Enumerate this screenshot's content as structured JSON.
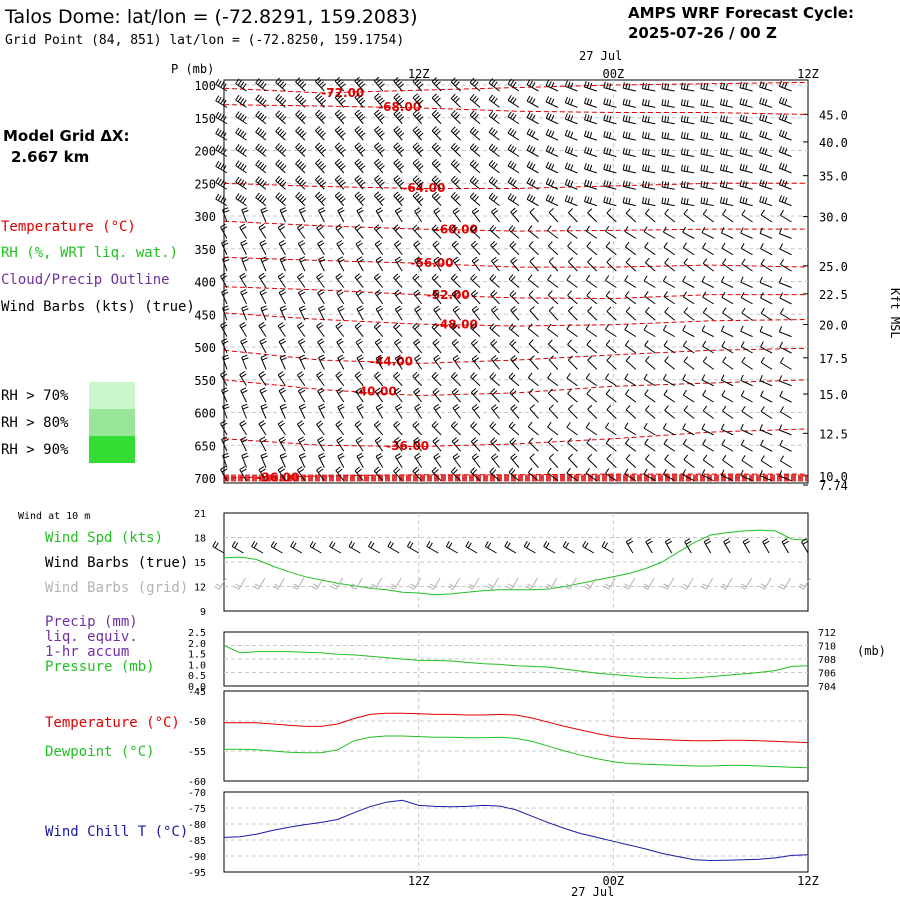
{
  "header": {
    "title": "Talos Dome:  lat/lon = (-72.8291, 159.2083)",
    "subtitle": "Grid Point (84, 851) lat/lon = (-72.8250, 159.1754)",
    "cycle_line1": "AMPS WRF Forecast Cycle:",
    "cycle_line2": "2025-07-26 / 00  Z"
  },
  "left_panel": {
    "grid_label": "Model Grid ΔX:",
    "grid_value": "2.667 km",
    "legend": [
      {
        "text": "Temperature (°C)",
        "color": "#e00000"
      },
      {
        "text": "RH (%, WRT liq. wat.)",
        "color": "#22c022"
      },
      {
        "text": "Cloud/Precip Outline",
        "color": "#7030a0"
      },
      {
        "text": "Wind Barbs (kts) (true)",
        "color": "#000000"
      }
    ],
    "rh_levels": [
      {
        "text": "RH > 70%",
        "color": "#ccf7cc"
      },
      {
        "text": "RH > 80%",
        "color": "#99e699"
      },
      {
        "text": "RH > 90%",
        "color": "#33dd33"
      }
    ]
  },
  "time_axis": {
    "top_date": "27 Jul",
    "bottom_date": "27 Jul",
    "labels": [
      "12Z",
      "00Z",
      "12Z"
    ]
  },
  "colors": {
    "temperature": "#e00000",
    "rh": "#22c022",
    "dewpoint": "#22c022",
    "pressure": "#22c022",
    "windchill": "#1a1aa8",
    "wind_speed": "#22c022",
    "grid_barbs": "#b4b4b4",
    "precip_label": "#7030a0"
  },
  "chart_data": [
    {
      "type": "line",
      "panel": "vertical cross-section",
      "ylabel": "P (mb)",
      "right_label": "Kft MSL",
      "y_ticks": [
        "100",
        "150",
        "200",
        "250",
        "300",
        "350",
        "400",
        "450",
        "500",
        "550",
        "600",
        "650",
        "700"
      ],
      "right_ticks": [
        "45.0",
        "40.0",
        "35.0",
        "30.0",
        "25.0",
        "22.5",
        "20.0",
        "17.5",
        "15.0",
        "12.5",
        "10.0",
        "7.74"
      ],
      "x_hours": [
        0,
        12,
        24,
        36
      ],
      "temperature_contours": [
        {
          "label": "-72.00",
          "points": [
            [
              0,
              105
            ],
            [
              6,
              112
            ],
            [
              12,
              108
            ],
            [
              18,
              104
            ],
            [
              24,
              100
            ],
            [
              30,
              98
            ],
            [
              36,
              96
            ]
          ]
        },
        {
          "label": "-68.00",
          "points": [
            [
              0,
              130
            ],
            [
              6,
              132
            ],
            [
              12,
              135
            ],
            [
              18,
              140
            ],
            [
              24,
              142
            ],
            [
              30,
              142
            ],
            [
              36,
              145
            ]
          ]
        },
        {
          "label": "-64.00",
          "points": [
            [
              0,
              250
            ],
            [
              6,
              255
            ],
            [
              12,
              258
            ],
            [
              18,
              258
            ],
            [
              24,
              254
            ],
            [
              30,
              250
            ],
            [
              36,
              250
            ]
          ]
        },
        {
          "label": "-60.00",
          "points": [
            [
              0,
              308
            ],
            [
              6,
              315
            ],
            [
              12,
              320
            ],
            [
              18,
              323
            ],
            [
              24,
              322
            ],
            [
              30,
              320
            ],
            [
              36,
              320
            ]
          ]
        },
        {
          "label": "-56.00",
          "points": [
            [
              0,
              363
            ],
            [
              6,
              368
            ],
            [
              12,
              372
            ],
            [
              18,
              378
            ],
            [
              24,
              378
            ],
            [
              30,
              375
            ],
            [
              36,
              378
            ]
          ]
        },
        {
          "label": "-52.00",
          "points": [
            [
              0,
              408
            ],
            [
              6,
              413
            ],
            [
              12,
              420
            ],
            [
              18,
              425
            ],
            [
              24,
              426
            ],
            [
              30,
              420
            ],
            [
              36,
              420
            ]
          ]
        },
        {
          "label": "-48.00",
          "points": [
            [
              0,
              448
            ],
            [
              6,
              458
            ],
            [
              12,
              465
            ],
            [
              18,
              468
            ],
            [
              24,
              466
            ],
            [
              30,
              460
            ],
            [
              36,
              458
            ]
          ]
        },
        {
          "label": "-44.00",
          "points": [
            [
              0,
              505
            ],
            [
              6,
              520
            ],
            [
              12,
              525
            ],
            [
              18,
              520
            ],
            [
              24,
              512
            ],
            [
              30,
              505
            ],
            [
              36,
              502
            ]
          ]
        },
        {
          "label": "-40.00",
          "points": [
            [
              0,
              550
            ],
            [
              6,
              565
            ],
            [
              12,
              574
            ],
            [
              18,
              570
            ],
            [
              24,
              560
            ],
            [
              30,
              555
            ],
            [
              36,
              550
            ]
          ]
        },
        {
          "label": "-36.00",
          "points": [
            [
              0,
              640
            ],
            [
              6,
              650
            ],
            [
              12,
              652
            ],
            [
              18,
              648
            ],
            [
              24,
              640
            ],
            [
              30,
              630
            ],
            [
              36,
              625
            ]
          ]
        },
        {
          "label": "-36.00",
          "points": [
            [
              0,
              700
            ],
            [
              6,
              697
            ],
            [
              12,
              695
            ],
            [
              18,
              695
            ],
            [
              24,
              694
            ],
            [
              30,
              694
            ],
            [
              36,
              694
            ]
          ]
        }
      ]
    },
    {
      "type": "line",
      "panel": "wind at 10 m",
      "corner_label": "Wind at 10 m",
      "legend": [
        "Wind Spd (kts)",
        "Wind Barbs (true)",
        "Wind Barbs (grid)"
      ],
      "ylim": [
        9,
        21
      ],
      "y_ticks": [
        "21",
        "18",
        "15",
        "12",
        "9"
      ],
      "series": [
        {
          "name": "Wind Spd (kts)",
          "hours": [
            0,
            1,
            2,
            3,
            4,
            5,
            6,
            7,
            8,
            9,
            10,
            11,
            12,
            13,
            14,
            15,
            16,
            17,
            18,
            19,
            20,
            21,
            22,
            23,
            24,
            25,
            26,
            27,
            28,
            29,
            30,
            31,
            32,
            33,
            34,
            35,
            36
          ],
          "values": [
            15.5,
            15.6,
            15.3,
            14.5,
            13.8,
            13.2,
            12.8,
            12.4,
            12.1,
            11.8,
            11.6,
            11.3,
            11.2,
            11.0,
            11.1,
            11.3,
            11.5,
            11.6,
            11.6,
            11.6,
            11.7,
            12.0,
            12.4,
            12.8,
            13.2,
            13.6,
            14.2,
            15.0,
            16.2,
            17.4,
            18.3,
            18.6,
            18.8,
            18.9,
            18.8,
            17.8,
            17.7
          ]
        }
      ]
    },
    {
      "type": "line",
      "panel": "precip and pressure",
      "legend": [
        "Precip (mm)",
        "liq. equiv.",
        "1-hr accum",
        "Pressure (mb)"
      ],
      "right_label": "(mb)",
      "y_ticks_left": [
        "2.5",
        "2.0",
        "1.5",
        "1.0",
        "0.5",
        "0.0"
      ],
      "y_ticks_right": [
        "712",
        "710",
        "708",
        "706",
        "704"
      ],
      "ylim_right": [
        704,
        712
      ],
      "series": [
        {
          "name": "Pressure (mb)",
          "hours": [
            0,
            1,
            2,
            3,
            4,
            5,
            6,
            7,
            8,
            9,
            10,
            11,
            12,
            13,
            14,
            15,
            16,
            17,
            18,
            19,
            20,
            21,
            22,
            23,
            24,
            25,
            26,
            27,
            28,
            29,
            30,
            31,
            32,
            33,
            34,
            35,
            36
          ],
          "values": [
            710.0,
            708.9,
            709.1,
            709.1,
            709.1,
            709.0,
            708.9,
            708.7,
            708.6,
            708.4,
            708.2,
            708.0,
            707.8,
            707.8,
            707.7,
            707.5,
            707.3,
            707.2,
            707.0,
            706.9,
            706.8,
            706.5,
            706.2,
            705.9,
            705.7,
            705.5,
            705.3,
            705.2,
            705.1,
            705.2,
            705.4,
            705.6,
            705.8,
            706.0,
            706.3,
            706.9,
            707.0
          ]
        }
      ]
    },
    {
      "type": "line",
      "panel": "temperature and dewpoint",
      "legend": [
        "Temperature (°C)",
        "Dewpoint (°C)"
      ],
      "ylim": [
        -60,
        -45
      ],
      "y_ticks": [
        "-45",
        "-50",
        "-55",
        "-60"
      ],
      "series": [
        {
          "name": "Temperature (°C)",
          "hours": [
            0,
            1,
            2,
            3,
            4,
            5,
            6,
            7,
            8,
            9,
            10,
            11,
            12,
            13,
            14,
            15,
            16,
            17,
            18,
            19,
            20,
            21,
            22,
            23,
            24,
            25,
            26,
            27,
            28,
            29,
            30,
            31,
            32,
            33,
            34,
            35,
            36
          ],
          "values": [
            -50.3,
            -50.3,
            -50.3,
            -50.5,
            -50.7,
            -50.9,
            -50.9,
            -50.5,
            -49.6,
            -48.9,
            -48.7,
            -48.7,
            -48.8,
            -48.9,
            -48.9,
            -49.0,
            -49.0,
            -48.9,
            -49.0,
            -49.5,
            -50.2,
            -50.9,
            -51.5,
            -52.1,
            -52.6,
            -52.9,
            -53.0,
            -53.1,
            -53.2,
            -53.3,
            -53.3,
            -53.2,
            -53.2,
            -53.3,
            -53.4,
            -53.5,
            -53.6
          ]
        },
        {
          "name": "Dewpoint (°C)",
          "hours": [
            0,
            1,
            2,
            3,
            4,
            5,
            6,
            7,
            8,
            9,
            10,
            11,
            12,
            13,
            14,
            15,
            16,
            17,
            18,
            19,
            20,
            21,
            22,
            23,
            24,
            25,
            26,
            27,
            28,
            29,
            30,
            31,
            32,
            33,
            34,
            35,
            36
          ],
          "values": [
            -54.7,
            -54.7,
            -54.8,
            -55.0,
            -55.2,
            -55.3,
            -55.3,
            -54.8,
            -53.3,
            -52.7,
            -52.5,
            -52.5,
            -52.6,
            -52.7,
            -52.7,
            -52.8,
            -52.8,
            -52.7,
            -52.9,
            -53.4,
            -54.2,
            -55.0,
            -55.7,
            -56.3,
            -56.8,
            -57.1,
            -57.2,
            -57.3,
            -57.4,
            -57.5,
            -57.5,
            -57.4,
            -57.4,
            -57.5,
            -57.6,
            -57.7,
            -57.8
          ]
        }
      ]
    },
    {
      "type": "line",
      "panel": "wind chill",
      "legend": [
        "Wind Chill T (°C)"
      ],
      "ylim": [
        -95,
        -70
      ],
      "y_ticks": [
        "-70",
        "-75",
        "-80",
        "-85",
        "-90",
        "-95"
      ],
      "series": [
        {
          "name": "Wind Chill T (°C)",
          "hours": [
            0,
            1,
            2,
            3,
            4,
            5,
            6,
            7,
            8,
            9,
            10,
            11,
            12,
            13,
            14,
            15,
            16,
            17,
            18,
            19,
            20,
            21,
            22,
            23,
            24,
            25,
            26,
            27,
            28,
            29,
            30,
            31,
            32,
            33,
            34,
            35,
            36
          ],
          "values": [
            -84.2,
            -84.0,
            -83.2,
            -82.0,
            -81.0,
            -80.2,
            -79.5,
            -78.6,
            -76.5,
            -74.6,
            -73.2,
            -72.6,
            -74.2,
            -74.5,
            -74.6,
            -74.5,
            -74.2,
            -74.4,
            -75.6,
            -77.6,
            -79.6,
            -81.4,
            -83.0,
            -84.2,
            -85.4,
            -86.6,
            -87.8,
            -89.2,
            -90.2,
            -91.2,
            -91.4,
            -91.3,
            -91.2,
            -91.0,
            -90.6,
            -89.8,
            -89.6
          ]
        }
      ]
    }
  ]
}
